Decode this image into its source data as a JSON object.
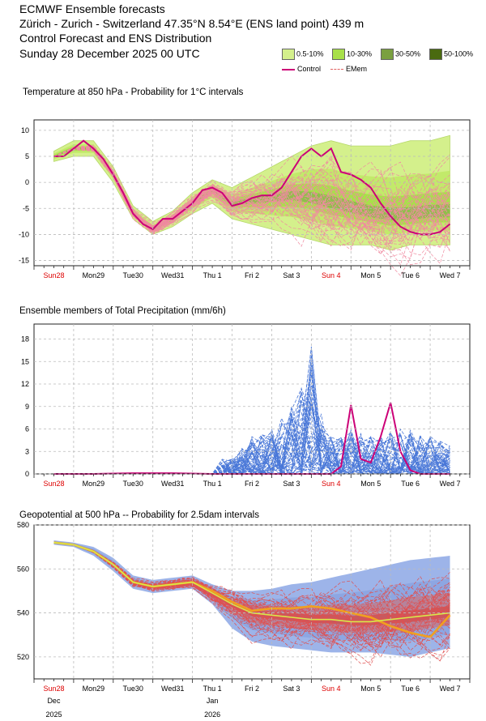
{
  "header": {
    "line1": "ECMWF Ensemble forecasts",
    "line2": "Zürich - Zurich - Switzerland 47.35°N 8.54°E (ENS land point) 439 m",
    "line3": "Control Forecast and ENS Distribution",
    "line4": "Sunday 28 December 2025 00 UTC"
  },
  "legend": {
    "items": [
      {
        "label": "0.5-10%",
        "color": "#d4f08c"
      },
      {
        "label": "10-30%",
        "color": "#a8e04a"
      },
      {
        "label": "30-50%",
        "color": "#7aa040"
      },
      {
        "label": "50-100%",
        "color": "#4a6a10"
      }
    ],
    "control_label": "Control",
    "emem_label": "EMem"
  },
  "days": [
    "Sun28",
    "Mon29",
    "Tue30",
    "Wed31",
    "Thu 1",
    "Fri 2",
    "Sat 3",
    "Sun 4",
    "Mon 5",
    "Tue 6",
    "Wed 7"
  ],
  "sunday_color": "#dd0000",
  "bottom_axis": {
    "month1": "Dec",
    "year1": "2025",
    "month2": "Jan",
    "year2": "2026"
  },
  "panels": {
    "t850": {
      "title": "Temperature at 850 hPa - Probability for 1°C intervals"
    },
    "precip": {
      "title": "Ensemble members of Total Precipitation (mm/6h)"
    },
    "z500": {
      "title": "Geopotential at 500 hPa -- Probability for 2.5dam intervals"
    }
  },
  "chart_data": [
    {
      "type": "line",
      "title": "Temperature at 850 hPa - Probability for 1°C intervals",
      "ylim": [
        -16,
        12
      ],
      "yticks": [
        10,
        5,
        0,
        -5,
        -10,
        -15
      ],
      "xlim_days": [
        0,
        10
      ],
      "control": {
        "x": [
          0,
          0.25,
          0.5,
          0.75,
          1.0,
          1.25,
          1.5,
          1.75,
          2.0,
          2.25,
          2.5,
          2.75,
          3.0,
          3.25,
          3.5,
          3.75,
          4.0,
          4.25,
          4.5,
          4.75,
          5.0,
          5.25,
          5.5,
          5.75,
          6.0,
          6.25,
          6.5,
          6.75,
          7.0,
          7.25,
          7.5,
          7.75,
          8.0,
          8.25,
          8.5,
          8.75,
          9.0,
          9.25,
          9.5,
          9.75,
          10.0
        ],
        "y": [
          5,
          5,
          6.5,
          8,
          6.5,
          4.5,
          1.5,
          -2,
          -6,
          -8,
          -9,
          -7,
          -7,
          -5.5,
          -4,
          -1.5,
          -1,
          -2,
          -4.5,
          -4,
          -3,
          -2.5,
          -2.5,
          -1,
          2,
          5,
          6.5,
          5,
          6.5,
          2,
          1.5,
          0.5,
          -1,
          -4,
          -6.5,
          -8.5,
          -9.5,
          -10,
          -10,
          -9.5,
          -8
        ]
      },
      "ensemble_mean": {
        "x": [
          0,
          0.5,
          1.0,
          1.5,
          2.0,
          2.5,
          3.0,
          3.5,
          4.0,
          4.5,
          5.0,
          5.5,
          6.0,
          6.5,
          7.0,
          7.5,
          8.0,
          8.5,
          9.0,
          9.5,
          10.0
        ],
        "y": [
          5,
          6.5,
          6.5,
          1.5,
          -6,
          -9,
          -7,
          -4,
          -1.5,
          -4,
          -3.5,
          -3,
          -2.5,
          -3,
          -4,
          -5,
          -6,
          -6.5,
          -6.5,
          -6,
          -6
        ]
      },
      "spread": {
        "lower": [
          4,
          5,
          5,
          0,
          -7,
          -10,
          -8.5,
          -6,
          -4,
          -7,
          -8,
          -9,
          -10,
          -11,
          -12,
          -12,
          -12,
          -13,
          -12,
          -12,
          -12
        ],
        "upper": [
          6,
          8,
          8,
          3,
          -4.5,
          -7.5,
          -5.5,
          -2,
          0.5,
          -1,
          1,
          3,
          5,
          7,
          8,
          7,
          7,
          7,
          8,
          8,
          9
        ]
      }
    },
    {
      "type": "line",
      "title": "Ensemble members of Total Precipitation (mm/6h)",
      "ylim": [
        0,
        20
      ],
      "yticks": [
        18,
        15,
        12,
        9,
        6,
        3,
        0
      ],
      "xlim_days": [
        0,
        10
      ],
      "control": {
        "x": [
          0,
          1,
          2,
          3,
          4,
          5,
          6,
          6.5,
          6.75,
          7.0,
          7.25,
          7.5,
          7.75,
          8.0,
          8.25,
          8.5,
          8.75,
          9.0,
          9.25,
          9.5,
          9.75,
          10.0
        ],
        "y": [
          0,
          0,
          0.1,
          0.1,
          0,
          0,
          0,
          0,
          0,
          0,
          1,
          9.2,
          2,
          1.5,
          5,
          9.5,
          3,
          0.5,
          0,
          0,
          0,
          0
        ]
      },
      "envelope_max": {
        "x": [
          4.5,
          5,
          5.5,
          6,
          6.25,
          6.5,
          6.75,
          7,
          7.5,
          8,
          8.5,
          9,
          9.5,
          10
        ],
        "y": [
          2,
          5,
          6,
          9,
          12,
          17,
          8,
          5,
          6,
          5,
          6,
          6,
          5,
          4
        ]
      }
    },
    {
      "type": "line",
      "title": "Geopotential at 500 hPa -- Probability for 2.5dam intervals",
      "ylim": [
        510,
        580
      ],
      "yticks": [
        580,
        560,
        540,
        520
      ],
      "xlim_days": [
        0,
        10
      ],
      "control": {
        "x": [
          0,
          0.5,
          1.0,
          1.5,
          2.0,
          2.5,
          3.0,
          3.5,
          4.0,
          4.5,
          5.0,
          5.5,
          6.0,
          6.5,
          7.0,
          7.5,
          8.0,
          8.5,
          9.0,
          9.5,
          10.0
        ],
        "y": [
          572,
          571,
          568,
          562,
          554,
          552,
          553,
          554,
          550,
          545,
          541,
          542,
          542,
          543,
          542,
          540,
          538,
          534,
          531,
          529,
          539
        ]
      },
      "ensemble_mean": {
        "x": [
          0,
          0.5,
          1.0,
          1.5,
          2.0,
          2.5,
          3.0,
          3.5,
          4.0,
          4.5,
          5.0,
          5.5,
          6.0,
          6.5,
          7.0,
          7.5,
          8.0,
          8.5,
          9.0,
          9.5,
          10.0
        ],
        "y": [
          572,
          571,
          568,
          562,
          554,
          552,
          553,
          554,
          549,
          544,
          540,
          539,
          538,
          537,
          537,
          536,
          536,
          537,
          538,
          539,
          540
        ]
      },
      "spread": {
        "lower": [
          571,
          570,
          566,
          559,
          551,
          549,
          550,
          551,
          544,
          533,
          527,
          525,
          524,
          523,
          522,
          522,
          522,
          521,
          520,
          522,
          524
        ],
        "upper": [
          573,
          572,
          570,
          565,
          557,
          555,
          556,
          557,
          553,
          550,
          550,
          551,
          553,
          554,
          556,
          558,
          560,
          562,
          564,
          565,
          566
        ]
      }
    }
  ]
}
